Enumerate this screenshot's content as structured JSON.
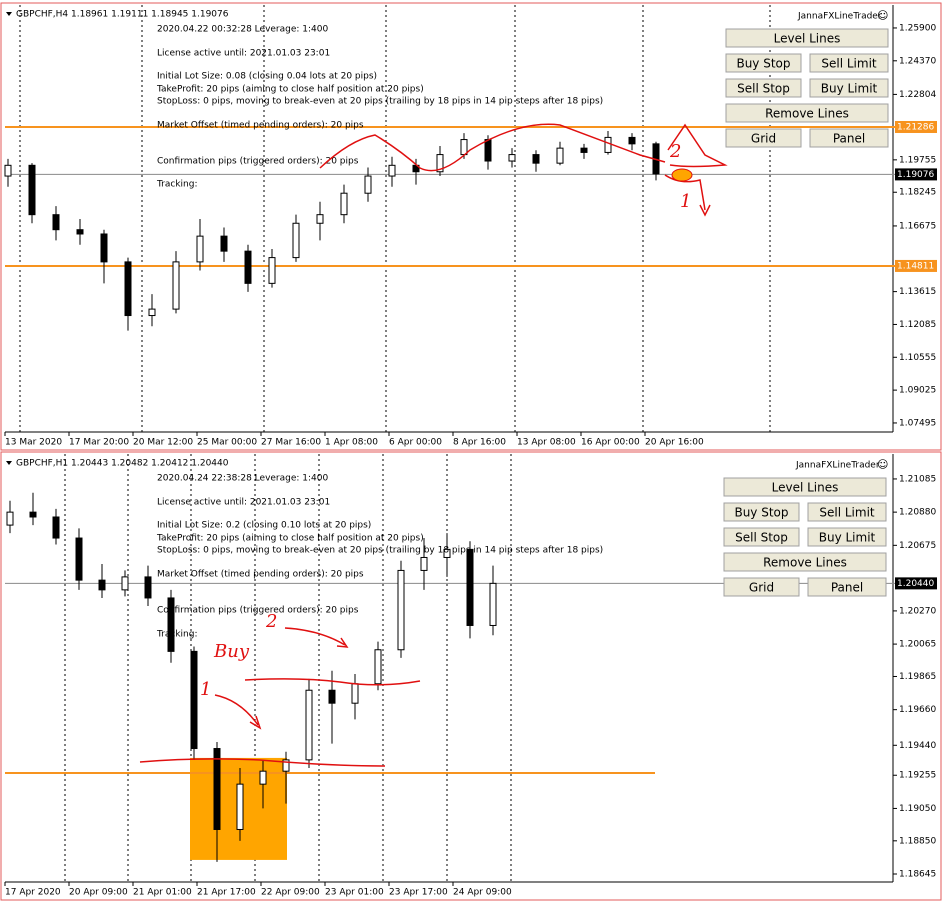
{
  "panels": [
    {
      "header": "GBPCHF,H4  1.18961 1.19111 1.18945 1.19076",
      "brand": "JannaFXLineTrader",
      "brand_icon": "☺",
      "info": [
        "2020.04.22 00:32:28    Leverage: 1:400",
        "License active until: 2021.01.03 23:01",
        "Initial Lot Size: 0.08  (closing 0.04 lots at 20 pips)",
        "TakeProfit: 20 pips  (aiming to close half position at 20 pips)",
        "StopLoss: 0 pips, moving to break-even at 20 pips  (trailing by 18 pips in 14 pip steps after 18 pips)",
        "Market Offset (timed pending orders): 20 pips",
        "Confirmation pips (triggered orders): 20 pips",
        "Tracking:"
      ],
      "buttons": [
        "Level Lines",
        "Buy Stop",
        "Sell Limit",
        "Sell Stop",
        "Buy Limit",
        "Remove Lines",
        "Grid",
        "Panel"
      ],
      "chart": {
        "type": "candlestick",
        "ylim": [
          1.0726,
          1.2683
        ],
        "yticks": [
          {
            "value": 1.259,
            "label": "1.25900"
          },
          {
            "value": 1.2437,
            "label": "1.24370"
          },
          {
            "value": 1.22804,
            "label": "1.22804"
          },
          {
            "value": 1.19755,
            "label": "1.19755"
          },
          {
            "value": 1.18245,
            "label": "1.18245"
          },
          {
            "value": 1.16675,
            "label": "1.16675"
          },
          {
            "value": 1.13615,
            "label": "1.13615"
          },
          {
            "value": 1.12085,
            "label": "1.12085"
          },
          {
            "value": 1.10555,
            "label": "1.10555"
          },
          {
            "value": 1.09025,
            "label": "1.09025"
          },
          {
            "value": 1.07495,
            "label": "1.07495"
          }
        ],
        "xlabels": [
          "13 Mar 2020",
          "17 Mar 20:00",
          "20 Mar 12:00",
          "25 Mar 00:00",
          "27 Mar 16:00",
          "1 Apr 08:00",
          "6 Apr 00:00",
          "8 Apr 16:00",
          "13 Apr 08:00",
          "16 Apr 00:00",
          "20 Apr 16:00"
        ],
        "levels": [
          {
            "value": 1.21286,
            "label": "1.21286",
            "color": "#f7931e"
          },
          {
            "value": 1.14811,
            "label": "1.14811",
            "color": "#f7931e"
          },
          {
            "value": 1.19076,
            "label": "1.19076",
            "color": "#000000"
          }
        ],
        "candles": [
          [
            1.19,
            1.198,
            1.185,
            1.195
          ],
          [
            1.195,
            1.196,
            1.168,
            1.172
          ],
          [
            1.172,
            1.176,
            1.16,
            1.165
          ],
          [
            1.165,
            1.17,
            1.158,
            1.163
          ],
          [
            1.163,
            1.165,
            1.14,
            1.15
          ],
          [
            1.15,
            1.152,
            1.118,
            1.125
          ],
          [
            1.125,
            1.135,
            1.12,
            1.128
          ],
          [
            1.128,
            1.155,
            1.126,
            1.15
          ],
          [
            1.15,
            1.17,
            1.146,
            1.162
          ],
          [
            1.162,
            1.166,
            1.15,
            1.155
          ],
          [
            1.155,
            1.158,
            1.136,
            1.14
          ],
          [
            1.14,
            1.156,
            1.138,
            1.152
          ],
          [
            1.152,
            1.172,
            1.15,
            1.168
          ],
          [
            1.168,
            1.178,
            1.16,
            1.172
          ],
          [
            1.172,
            1.186,
            1.168,
            1.182
          ],
          [
            1.182,
            1.194,
            1.178,
            1.19
          ],
          [
            1.19,
            1.199,
            1.185,
            1.195
          ],
          [
            1.195,
            1.198,
            1.186,
            1.192
          ],
          [
            1.192,
            1.204,
            1.19,
            1.2
          ],
          [
            1.2,
            1.21,
            1.198,
            1.207
          ],
          [
            1.207,
            1.209,
            1.193,
            1.197
          ],
          [
            1.197,
            1.203,
            1.194,
            1.2
          ],
          [
            1.2,
            1.202,
            1.192,
            1.196
          ],
          [
            1.196,
            1.206,
            1.195,
            1.203
          ],
          [
            1.203,
            1.205,
            1.198,
            1.201
          ],
          [
            1.201,
            1.211,
            1.2,
            1.208
          ],
          [
            1.208,
            1.21,
            1.202,
            1.205
          ],
          [
            1.205,
            1.206,
            1.188,
            1.191
          ]
        ],
        "annotations": [
          "2",
          "1"
        ]
      }
    },
    {
      "header": "GBPCHF,H1  1.20443 1.20482 1.20412 1.20440",
      "brand": "JannaFXLineTrader",
      "brand_icon": "☺",
      "info": [
        "2020.04.24 22:38:28    Leverage: 1:400",
        "License active until: 2021.01.03 23:01",
        "Initial Lot Size: 0.2  (closing 0.10 lots at 20 pips)",
        "TakeProfit: 20 pips  (aiming to close half position at 20 pips)",
        "StopLoss: 0 pips, moving to break-even at 20 pips  (trailing by 18 pips in 14 pip steps after 18 pips)",
        "Market Offset (timed pending orders): 20 pips",
        "Confirmation pips (triggered orders): 20 pips",
        "Tracking:"
      ],
      "buttons": [
        "Level Lines",
        "Buy Stop",
        "Sell Limit",
        "Sell Stop",
        "Buy Limit",
        "Remove Lines",
        "Grid",
        "Panel"
      ],
      "chart": {
        "type": "candlestick",
        "ylim": [
          1.18608,
          1.21202
        ],
        "yticks": [
          {
            "value": 1.21085,
            "label": "1.21085"
          },
          {
            "value": 1.2088,
            "label": "1.20880"
          },
          {
            "value": 1.20675,
            "label": "1.20675"
          },
          {
            "value": 1.2027,
            "label": "1.20270"
          },
          {
            "value": 1.20065,
            "label": "1.20065"
          },
          {
            "value": 1.19865,
            "label": "1.19865"
          },
          {
            "value": 1.1966,
            "label": "1.19660"
          },
          {
            "value": 1.1944,
            "label": "1.19440"
          },
          {
            "value": 1.19255,
            "label": "1.19255"
          },
          {
            "value": 1.1905,
            "label": "1.19050"
          },
          {
            "value": 1.1885,
            "label": "1.18850"
          },
          {
            "value": 1.18645,
            "label": "1.18645"
          }
        ],
        "xlabels": [
          "17 Apr 2020",
          "20 Apr 09:00",
          "21 Apr 01:00",
          "21 Apr 17:00",
          "22 Apr 09:00",
          "23 Apr 01:00",
          "23 Apr 17:00",
          "24 Apr 09:00"
        ],
        "levels": [
          {
            "value": 1.2044,
            "label": "1.20440",
            "color": "#000000"
          },
          {
            "value": 1.19269,
            "label": null,
            "color": "#f7931e"
          }
        ],
        "zone": [
          1.19362,
          1.18732
        ],
        "candles": [
          [
            1.208,
            1.2095,
            1.2075,
            1.2088
          ],
          [
            1.2088,
            1.21,
            1.208,
            1.2085
          ],
          [
            1.2085,
            1.209,
            1.2068,
            1.2072
          ],
          [
            1.2072,
            1.2078,
            1.204,
            1.2046
          ],
          [
            1.2046,
            1.2056,
            1.2035,
            1.204
          ],
          [
            1.204,
            1.2052,
            1.2036,
            1.2048
          ],
          [
            1.2048,
            1.2055,
            1.203,
            1.2035
          ],
          [
            1.2035,
            1.204,
            1.1995,
            1.2002
          ],
          [
            1.2002,
            1.2005,
            1.1935,
            1.1942
          ],
          [
            1.1942,
            1.1946,
            1.1872,
            1.1892
          ],
          [
            1.1892,
            1.193,
            1.1885,
            1.192
          ],
          [
            1.192,
            1.1935,
            1.1905,
            1.1928
          ],
          [
            1.1928,
            1.194,
            1.1908,
            1.1935
          ],
          [
            1.1935,
            1.1985,
            1.193,
            1.1978
          ],
          [
            1.1978,
            1.199,
            1.1945,
            1.197
          ],
          [
            1.197,
            1.1988,
            1.196,
            1.1982
          ],
          [
            1.1982,
            1.2008,
            1.1978,
            1.2003
          ],
          [
            1.2003,
            1.2058,
            1.1998,
            1.2052
          ],
          [
            1.2052,
            1.2072,
            1.204,
            1.206
          ],
          [
            1.206,
            1.2075,
            1.2048,
            1.2065
          ],
          [
            1.2065,
            1.207,
            1.201,
            1.2018
          ],
          [
            1.2018,
            1.2055,
            1.2012,
            1.2044
          ]
        ],
        "annotations": [
          "1",
          "2",
          "Buy"
        ]
      }
    }
  ]
}
